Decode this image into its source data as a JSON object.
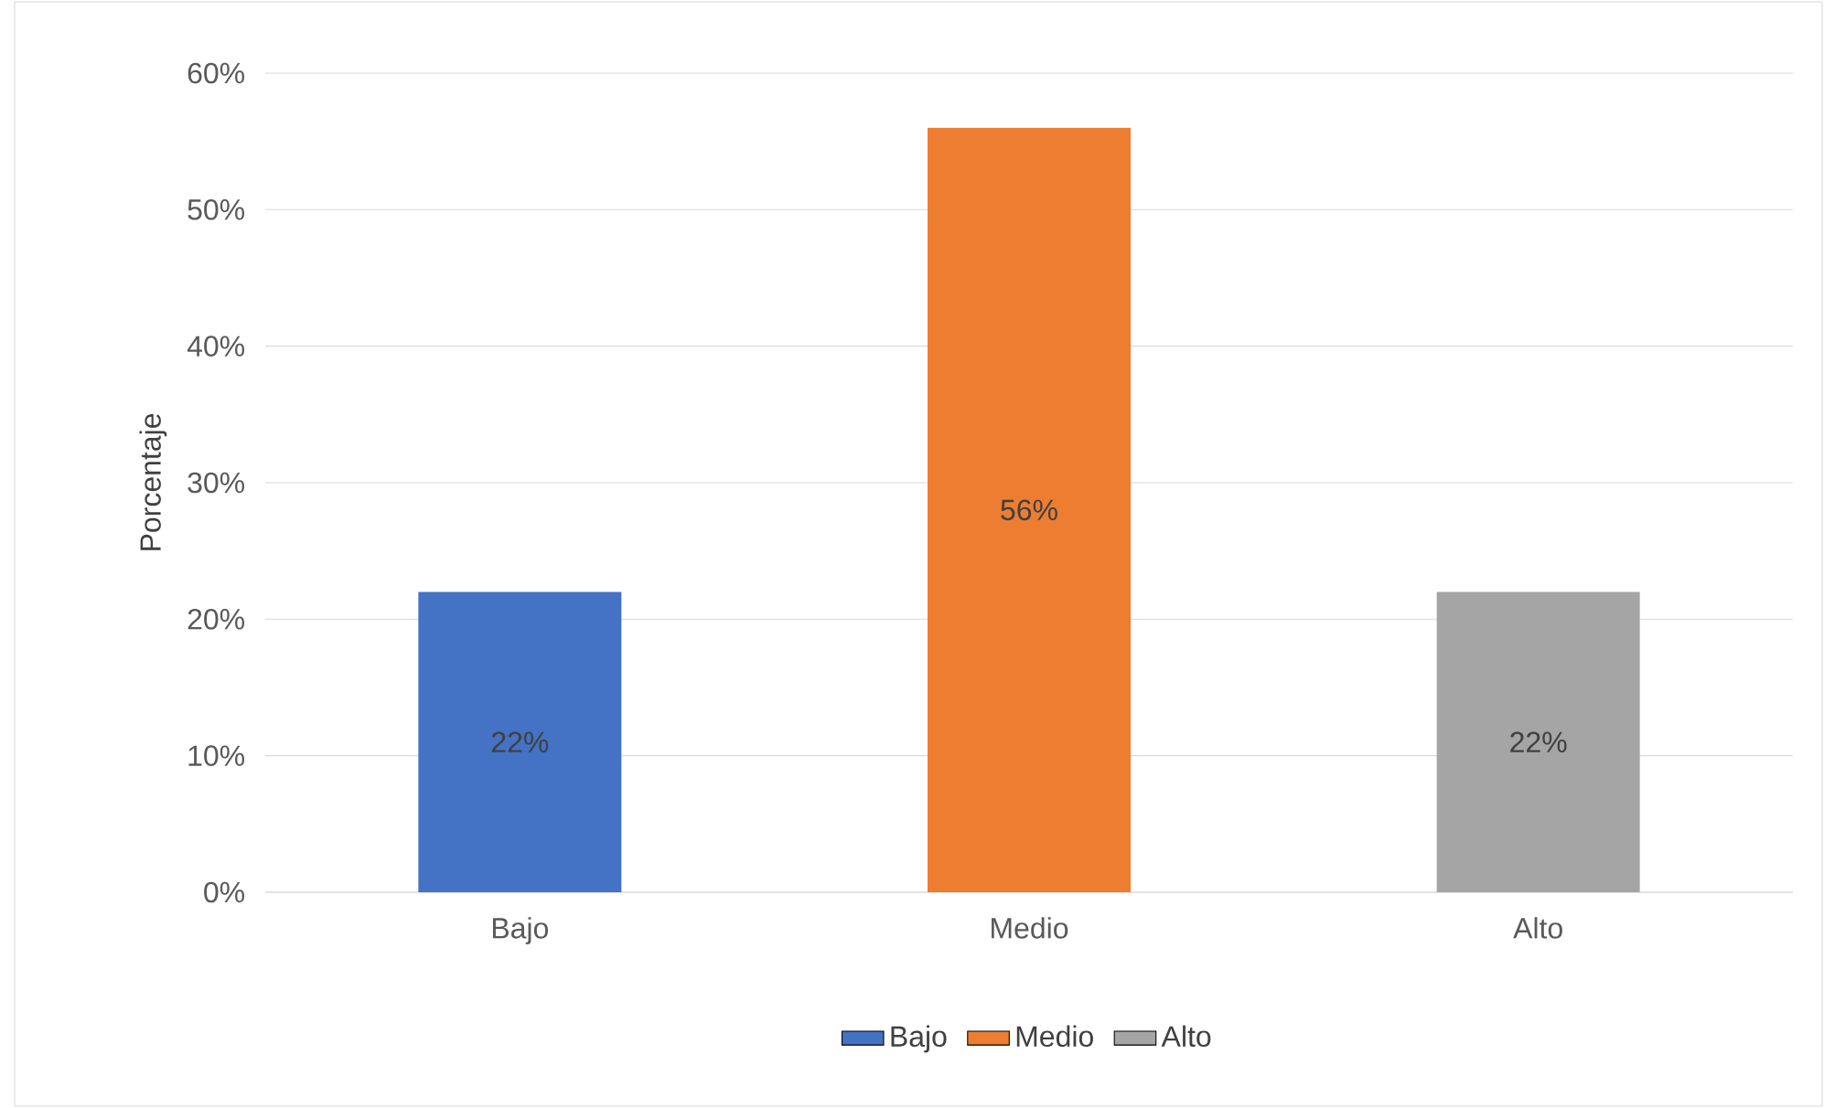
{
  "chart_data": {
    "type": "bar",
    "categories": [
      "Bajo",
      "Medio",
      "Alto"
    ],
    "series": [
      {
        "name": "Bajo",
        "color": "#4472c4",
        "values": [
          22,
          null,
          null
        ],
        "value_labels": [
          "22%",
          null,
          null
        ]
      },
      {
        "name": "Medio",
        "color": "#ed7d31",
        "values": [
          null,
          56,
          null
        ],
        "value_labels": [
          null,
          "56%",
          null
        ]
      },
      {
        "name": "Alto",
        "color": "#a5a5a5",
        "values": [
          null,
          null,
          22
        ],
        "value_labels": [
          null,
          null,
          "22%"
        ]
      }
    ],
    "ylabel": "Porcentaje",
    "ylim": [
      0,
      60
    ],
    "yticks": [
      {
        "value": 0,
        "label": "0%"
      },
      {
        "value": 10,
        "label": "10%"
      },
      {
        "value": 20,
        "label": "20%"
      },
      {
        "value": 30,
        "label": "30%"
      },
      {
        "value": 40,
        "label": "40%"
      },
      {
        "value": 50,
        "label": "50%"
      },
      {
        "value": 60,
        "label": "60%"
      }
    ],
    "grid": "y",
    "legend": "bottom"
  }
}
